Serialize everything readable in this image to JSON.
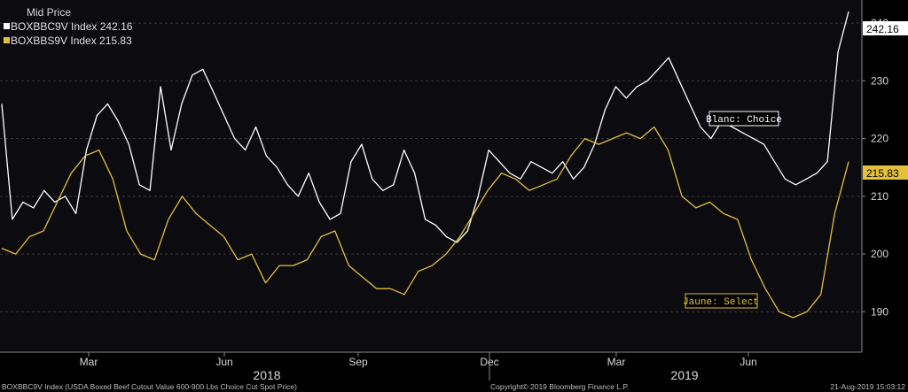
{
  "chart_data": {
    "type": "line",
    "legend_title": "Mid Price",
    "legend_placement": "top-left",
    "grid": "horizontal dashed",
    "ylim": [
      183,
      244
    ],
    "y_ticks": [
      190,
      200,
      210,
      220,
      230,
      240
    ],
    "x_ticks": [
      "Mar",
      "Jun",
      "Sep",
      "Dec",
      "Mar",
      "Jun"
    ],
    "years": [
      "2018",
      "2019"
    ],
    "colors": {
      "background": "#000000",
      "choice": "#ffffff",
      "select": "#e3c13b",
      "grid": "#3a3a3a"
    },
    "series": [
      {
        "name": "BOXBBC9V Index 242.16",
        "last_label": "242.16",
        "color": "#ffffff",
        "values": [
          226,
          206,
          209,
          208,
          211,
          209,
          210,
          207,
          218,
          224,
          226,
          223,
          219,
          212,
          211,
          229,
          218,
          226,
          231,
          232,
          228,
          224,
          220,
          218,
          222,
          217,
          215,
          212,
          210,
          214,
          209,
          206,
          207,
          216,
          219,
          213,
          211,
          212,
          218,
          214,
          206,
          205,
          203,
          202,
          204,
          210,
          218,
          216,
          214,
          213,
          216,
          215,
          214,
          216,
          213,
          215,
          219,
          225,
          229,
          227,
          229,
          230,
          232,
          234,
          230,
          226,
          222,
          220,
          223,
          222,
          221,
          220,
          219,
          216,
          213,
          212,
          213,
          214,
          216,
          235,
          242
        ]
      },
      {
        "name": "BOXBBS9V Index 215.83",
        "last_label": "215.83",
        "color": "#e3c13b",
        "values": [
          201,
          200,
          203,
          204,
          209,
          214,
          217,
          218,
          213,
          204,
          200,
          199,
          206,
          210,
          207,
          205,
          203,
          199,
          200,
          195,
          198,
          198,
          199,
          203,
          204,
          198,
          196,
          194,
          194,
          193,
          197,
          198,
          200,
          203,
          207,
          211,
          214,
          213,
          211,
          212,
          213,
          217,
          220,
          219,
          220,
          221,
          220,
          222,
          218,
          210,
          208,
          209,
          207,
          206,
          199,
          194,
          190,
          189,
          190,
          193,
          207,
          216
        ]
      }
    ],
    "annotations": [
      {
        "text": "Blanc: Choice",
        "color": "#ffffff"
      },
      {
        "text": "Jaune: Select",
        "color": "#e3c13b"
      }
    ],
    "footer_left": "BOXBBC9V Index (USDA Boxed Beef Cutout Value 600-900 Lbs Choice Cut Spot Price)",
    "footer_mid": "Copyright© 2019 Bloomberg Finance L.P.",
    "footer_right": "21-Aug-2019 15:03:12"
  }
}
